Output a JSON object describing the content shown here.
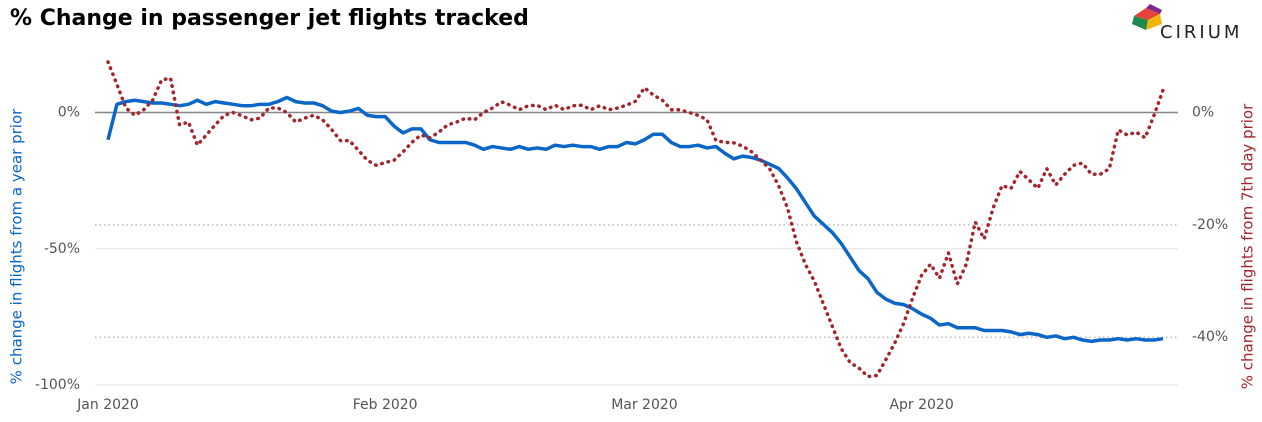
{
  "chart_data": {
    "type": "line",
    "title": "% Change in passenger jet flights tracked",
    "ylabel": "% change in flights from a year prior",
    "y2label": "% change in flights from 7th day prior",
    "x": [
      0,
      1,
      2,
      3,
      4,
      5,
      6,
      7,
      8,
      9,
      10,
      11,
      12,
      13,
      14,
      15,
      16,
      17,
      18,
      19,
      20,
      21,
      22,
      23,
      24,
      25,
      26,
      27,
      28,
      29,
      30,
      31,
      32,
      33,
      34,
      35,
      36,
      37,
      38,
      39,
      40,
      41,
      42,
      43,
      44,
      45,
      46,
      47,
      48,
      49,
      50,
      51,
      52,
      53,
      54,
      55,
      56,
      57,
      58,
      59,
      60,
      61,
      62,
      63,
      64,
      65,
      66,
      67,
      68,
      69,
      70,
      71,
      72,
      73,
      74,
      75,
      76,
      77,
      78,
      79,
      80,
      81,
      82,
      83,
      84,
      85,
      86,
      87,
      88,
      89,
      90,
      91,
      92,
      93,
      94,
      95,
      96,
      97,
      98,
      99,
      100,
      101,
      102,
      103,
      104,
      105,
      106,
      107,
      108,
      109,
      110,
      111,
      112,
      113,
      114,
      115,
      116,
      117,
      118
    ],
    "xlim": [
      0,
      118
    ],
    "xticks": [
      {
        "value": 0,
        "label": "Jan 2020"
      },
      {
        "value": 31,
        "label": "Feb 2020"
      },
      {
        "value": 60,
        "label": "Mar 2020"
      },
      {
        "value": 91,
        "label": "Apr 2020"
      }
    ],
    "ylim": [
      -100,
      20
    ],
    "yticks": [
      {
        "value": 0,
        "label": "0%"
      },
      {
        "value": -50,
        "label": "-50%"
      },
      {
        "value": -100,
        "label": "-100%"
      }
    ],
    "y2lim": [
      -48.5,
      9.7
    ],
    "y2ticks": [
      {
        "value": 0,
        "label": "0%"
      },
      {
        "value": -20,
        "label": "-20%"
      },
      {
        "value": -40,
        "label": "-40%"
      }
    ],
    "grid": true,
    "series": [
      {
        "name": "% change in flights from a year prior",
        "color": "#0a66c8",
        "axis": "y",
        "values": [
          -10,
          3,
          4,
          4.5,
          4,
          3.5,
          3.5,
          3,
          2.5,
          3,
          4.5,
          3,
          4,
          3.5,
          3,
          2.5,
          2.5,
          3,
          3,
          4,
          5.5,
          4,
          3.5,
          3.5,
          2.5,
          0.5,
          0,
          0.5,
          1.5,
          -1,
          -1.5,
          -1.5,
          -5,
          -7.5,
          -6,
          -6,
          -10,
          -11,
          -11,
          -11,
          -11,
          -12,
          -13.5,
          -12.5,
          -13,
          -13.5,
          -12.5,
          -13.5,
          -13,
          -13.5,
          -12,
          -12.5,
          -12,
          -12.5,
          -12.5,
          -13.5,
          -12.5,
          -12.5,
          -11,
          -11.5,
          -10,
          -8,
          -8,
          -11,
          -12.5,
          -12.5,
          -12,
          -13,
          -12.5,
          -15,
          -17,
          -16,
          -16.5,
          -17.5,
          -19,
          -20.5,
          -24,
          -28,
          -33,
          -38,
          -41,
          -44,
          -48,
          -53,
          -58,
          -61,
          -66,
          -68.5,
          -70,
          -70.5,
          -72,
          -74,
          -75.5,
          -78,
          -77.5,
          -79,
          -79,
          -79,
          -80,
          -80,
          -80,
          -80.5,
          -81.5,
          -81,
          -81.5,
          -82.5,
          -82,
          -83,
          -82.5,
          -83.5,
          -84,
          -83.5,
          -83.5,
          -83,
          -83.5,
          -83,
          -83.5,
          -83.5,
          -83
        ]
      },
      {
        "name": "% change in flights from 7th day prior",
        "color": "#a4262c",
        "axis": "y2",
        "style": "dotted",
        "values": [
          9,
          5,
          0.8,
          -0.5,
          0.5,
          2.2,
          5.8,
          6.1,
          -2.2,
          -1.7,
          -5.8,
          -4,
          -2.2,
          -0.5,
          0,
          -0.6,
          -1.3,
          -1,
          0.8,
          0.8,
          0,
          -1.7,
          -1,
          -0.5,
          -1.3,
          -3,
          -5,
          -5,
          -6.7,
          -8.5,
          -9.4,
          -8.9,
          -8.5,
          -7,
          -5.3,
          -4,
          -4.5,
          -3.5,
          -2.2,
          -1.7,
          -1,
          -1.3,
          0,
          0.8,
          1.9,
          1.3,
          0.5,
          1.2,
          1.3,
          0.5,
          1.3,
          0.5,
          1.2,
          1.3,
          0.5,
          1.2,
          0.5,
          0.8,
          1.3,
          2,
          4.4,
          3.1,
          2.2,
          0.5,
          0.5,
          0,
          -0.5,
          -1.3,
          -5,
          -5.3,
          -5.4,
          -6,
          -7,
          -8.5,
          -10,
          -13,
          -17,
          -23,
          -27,
          -30,
          -34,
          -38,
          -42,
          -44.5,
          -45.5,
          -47,
          -46.8,
          -44,
          -41,
          -37.5,
          -33,
          -29,
          -27,
          -29.5,
          -25,
          -30.5,
          -27,
          -19.5,
          -22.5,
          -17,
          -13,
          -13.5,
          -10.5,
          -12,
          -13.5,
          -10,
          -12.9,
          -11,
          -9.4,
          -9,
          -11,
          -11,
          -10,
          -3.1,
          -4,
          -3.5,
          -4.5,
          -0.5,
          4
        ]
      }
    ]
  },
  "brand": "CIRIUM"
}
